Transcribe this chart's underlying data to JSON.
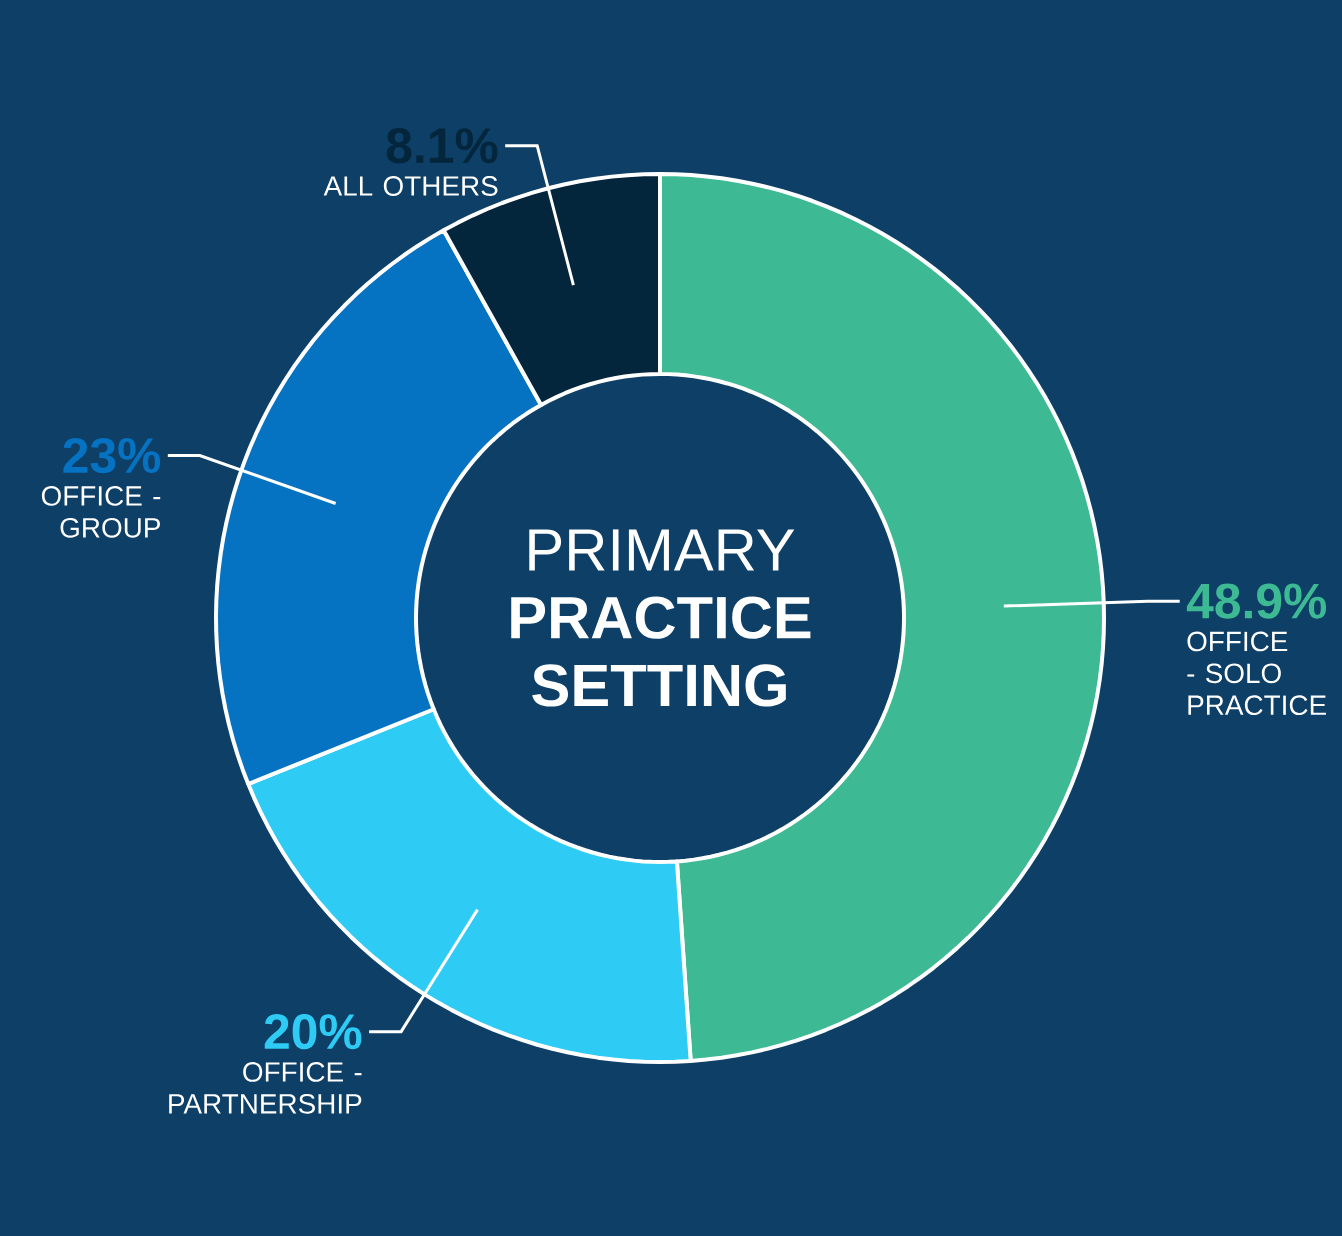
{
  "chart_data": {
    "type": "donut",
    "title": "PRIMARY **PRACTICE SETTING**",
    "categories": [
      "OFFICE - SOLO PRACTICE",
      "OFFICE - PARTNERSHIP",
      "OFFICE - GROUP",
      "ALL OTHERS"
    ],
    "values": [
      48.9,
      20,
      23,
      8.1
    ],
    "value_labels": [
      "48.9%",
      "20%",
      "23%",
      "8.1%"
    ],
    "colors": [
      "#3dba94",
      "#2ecbf5",
      "#0672c2",
      "#04263d"
    ]
  }
}
